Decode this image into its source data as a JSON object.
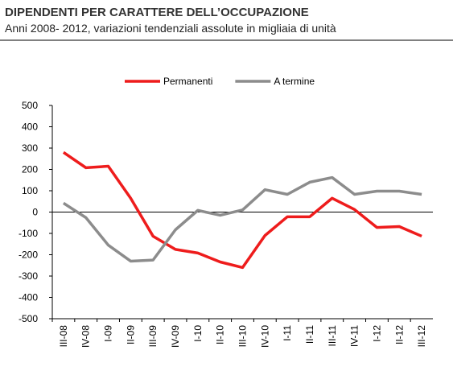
{
  "chart_data": {
    "type": "line",
    "title": "DIPENDENTI PER CARATTERE DELL’OCCUPAZIONE",
    "subtitle": "Anni 2008- 2012, variazioni tendenziali assolute in migliaia di unità",
    "categories": [
      "III-08",
      "IV-08",
      "I-09",
      "II-09",
      "III-09",
      "IV-09",
      "I-10",
      "II-10",
      "III-10",
      "IV-10",
      "I-11",
      "II-11",
      "III-11",
      "IV-11",
      "I-12",
      "II-12",
      "III-12"
    ],
    "series": [
      {
        "name": "Permanenti",
        "color": "#ee1c1c",
        "values": [
          280,
          208,
          215,
          65,
          -113,
          -175,
          -192,
          -234,
          -260,
          -110,
          -22,
          -22,
          65,
          12,
          -72,
          -68,
          -113
        ]
      },
      {
        "name": "A termine",
        "color": "#8c8c8c",
        "values": [
          42,
          -26,
          -155,
          -230,
          -225,
          -83,
          8,
          -15,
          10,
          105,
          83,
          140,
          162,
          83,
          98,
          98,
          83
        ]
      }
    ],
    "ylim": [
      -500,
      500
    ],
    "yticks": [
      -500,
      -400,
      -300,
      -200,
      -100,
      0,
      100,
      200,
      300,
      400,
      500
    ],
    "grid": false,
    "legend": "top"
  }
}
